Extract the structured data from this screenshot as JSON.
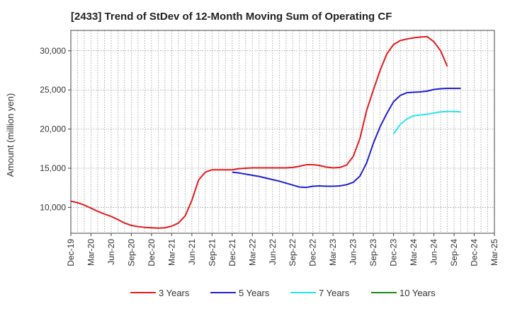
{
  "chart_data": {
    "type": "line",
    "title": "[2433]  Trend of StDev of 12-Month Moving Sum of Operating CF",
    "xlabel": "",
    "ylabel": "Amount (million yen)",
    "x_tick_labels": [
      "Dec-19",
      "Mar-20",
      "Jun-20",
      "Sep-20",
      "Dec-20",
      "Mar-21",
      "Jun-21",
      "Sep-21",
      "Dec-21",
      "Mar-22",
      "Jun-22",
      "Sep-22",
      "Dec-22",
      "Mar-23",
      "Jun-23",
      "Sep-23",
      "Dec-23",
      "Mar-24",
      "Jun-24",
      "Sep-24",
      "Dec-24",
      "Mar-25"
    ],
    "y_ticks": [
      10000,
      15000,
      20000,
      25000,
      30000
    ],
    "y_tick_labels": [
      "10,000",
      "15,000",
      "20,000",
      "25,000",
      "30,000"
    ],
    "ylim": [
      6700,
      32600
    ],
    "grid": true,
    "legend_position": "bottom",
    "series": [
      {
        "name": "3 Years",
        "color": "#e31a1c",
        "start_month": "Dec-19",
        "values": [
          10800,
          10600,
          10300,
          9900,
          9500,
          9150,
          8850,
          8450,
          8000,
          7700,
          7550,
          7450,
          7400,
          7350,
          7400,
          7600,
          8000,
          8900,
          10900,
          13500,
          14500,
          14800,
          14800,
          14800,
          14800,
          14950,
          15000,
          15050,
          15050,
          15050,
          15050,
          15050,
          15050,
          15100,
          15250,
          15450,
          15450,
          15350,
          15150,
          15050,
          15100,
          15400,
          16500,
          18800,
          22400,
          25000,
          27500,
          29600,
          30800,
          31300,
          31500,
          31650,
          31750,
          31800,
          31150,
          30000,
          28000
        ]
      },
      {
        "name": "5 Years",
        "color": "#1f1fcf",
        "start_month": "Dec-21",
        "values": [
          14500,
          14400,
          14250,
          14100,
          13950,
          13750,
          13550,
          13350,
          13100,
          12850,
          12600,
          12550,
          12700,
          12750,
          12700,
          12700,
          12750,
          12900,
          13200,
          14000,
          15700,
          18200,
          20300,
          22000,
          23500,
          24300,
          24650,
          24700,
          24750,
          24850,
          25050,
          25150,
          25200,
          25200,
          25200
        ]
      },
      {
        "name": "7 Years",
        "color": "#22e5f0",
        "start_month": "Dec-23",
        "values": [
          19400,
          20600,
          21300,
          21700,
          21800,
          21900,
          22050,
          22200,
          22250,
          22250,
          22200
        ]
      },
      {
        "name": "10 Years",
        "color": "#1a8a1a",
        "start_month": "",
        "values": []
      }
    ]
  }
}
